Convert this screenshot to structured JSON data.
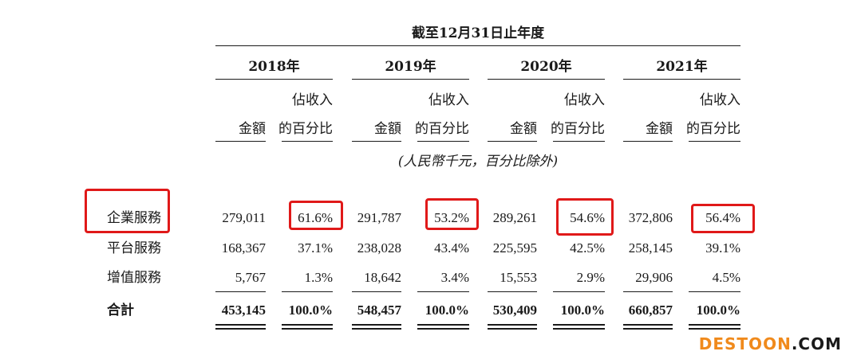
{
  "header": {
    "period_title": "截至12月31日止年度",
    "unit_note": "(人民幣千元，百分比除外)"
  },
  "years": [
    "2018年",
    "2019年",
    "2020年",
    "2021年"
  ],
  "col_labels": {
    "amount": "金額",
    "pct_line1": "佔收入",
    "pct_line2": "的百分比"
  },
  "rows": [
    {
      "label": "企業服務",
      "values": [
        "279,011",
        "61.6%",
        "291,787",
        "53.2%",
        "289,261",
        "54.6%",
        "372,806",
        "56.4%"
      ]
    },
    {
      "label": "平台服務",
      "values": [
        "168,367",
        "37.1%",
        "238,028",
        "43.4%",
        "225,595",
        "42.5%",
        "258,145",
        "39.1%"
      ]
    },
    {
      "label": "增值服務",
      "values": [
        "5,767",
        "1.3%",
        "18,642",
        "3.4%",
        "15,553",
        "2.9%",
        "29,906",
        "4.5%"
      ]
    }
  ],
  "total": {
    "label": "合計",
    "values": [
      "453,145",
      "100.0%",
      "548,457",
      "100.0%",
      "530,409",
      "100.0%",
      "660,857",
      "100.0%"
    ]
  },
  "highlight_color": "#e01919",
  "watermark": {
    "brand": "DESTOON",
    "suffix": ".COM",
    "brand_color": "#f08a1c",
    "suffix_color": "#1a1a1a"
  }
}
